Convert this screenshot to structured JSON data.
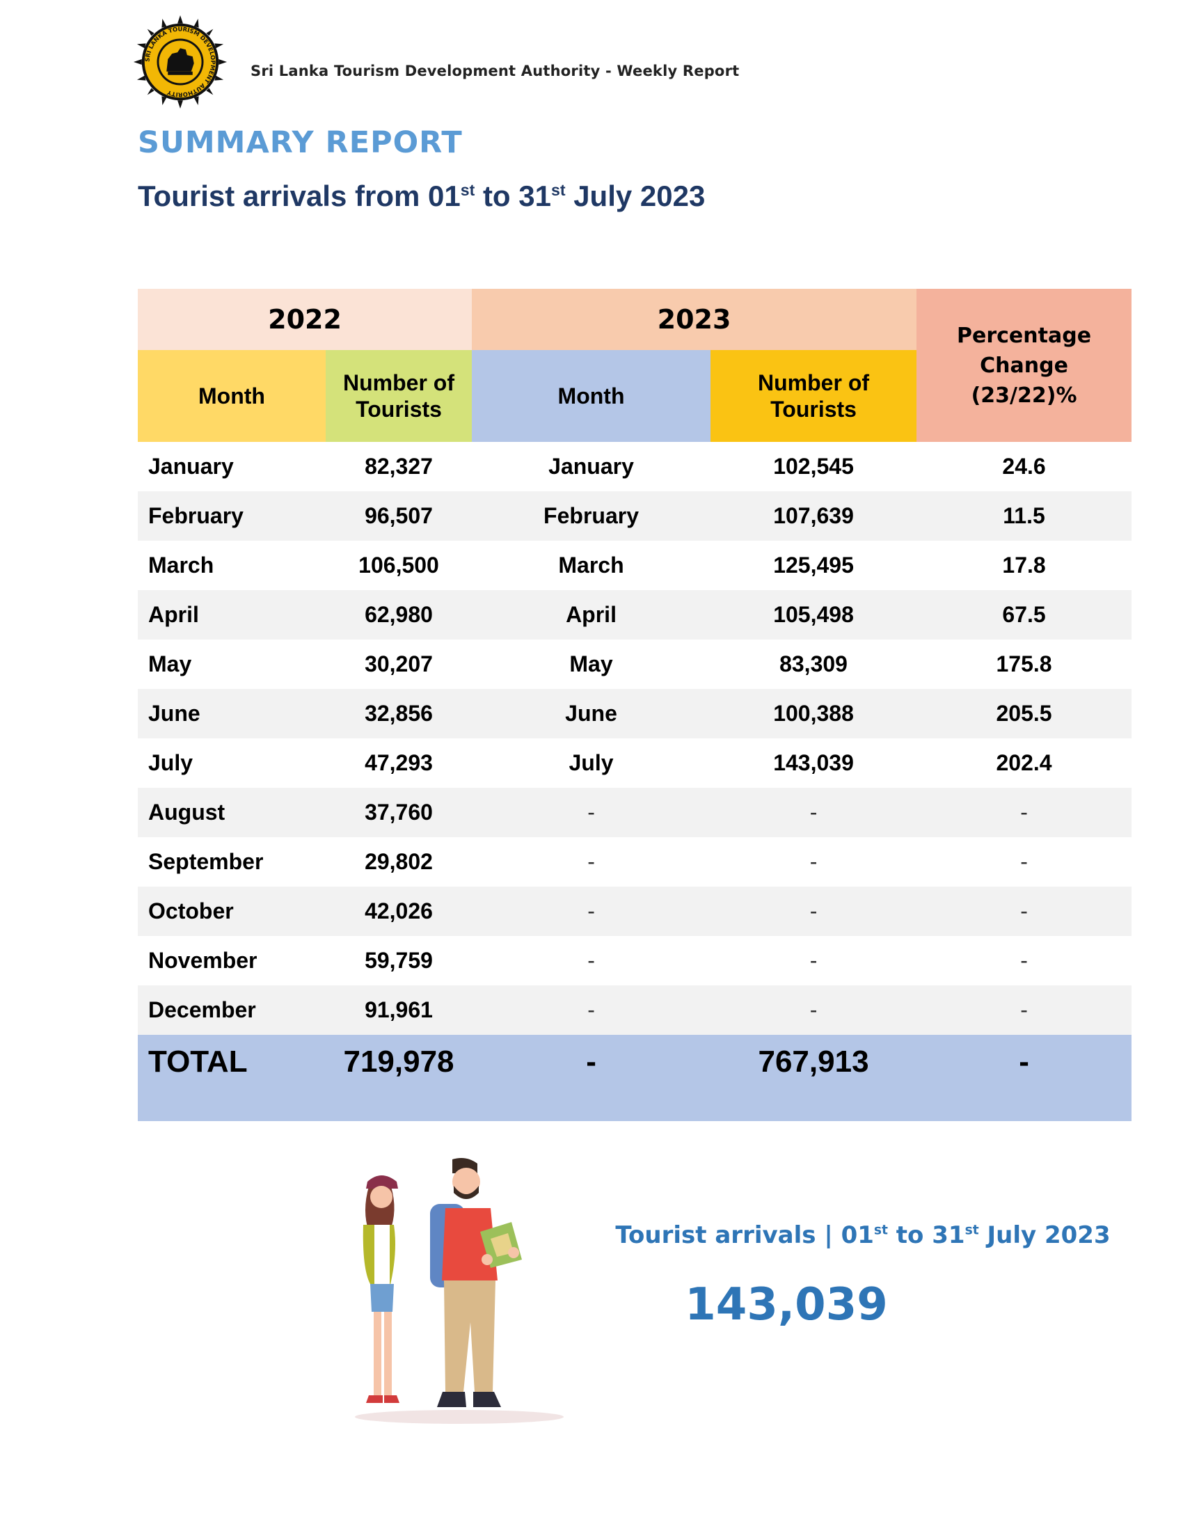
{
  "header": {
    "org_text": "Sri Lanka Tourism Development Authority - Weekly Report",
    "seal_text": "SRI LANKA TOURISM DEVELOPMENT AUTHORITY"
  },
  "title": "SUMMARY REPORT",
  "subtitle": {
    "prefix": "Tourist arrivals from 01",
    "sup1": "st",
    "mid": " to 31",
    "sup2": "st",
    "suffix": " July 2023"
  },
  "table": {
    "year_2022": "2022",
    "year_2023": "2023",
    "pct_header": [
      "Percentage",
      "Change",
      "(23/22)%"
    ],
    "col_month": "Month",
    "col_tourists": [
      "Number of",
      "Tourists"
    ],
    "rows": [
      {
        "m22": "January",
        "n22": "82,327",
        "m23": "January",
        "n23": "102,545",
        "pct": "24.6"
      },
      {
        "m22": "February",
        "n22": "96,507",
        "m23": "February",
        "n23": "107,639",
        "pct": "11.5"
      },
      {
        "m22": "March",
        "n22": "106,500",
        "m23": "March",
        "n23": "125,495",
        "pct": "17.8"
      },
      {
        "m22": "April",
        "n22": "62,980",
        "m23": "April",
        "n23": "105,498",
        "pct": "67.5"
      },
      {
        "m22": "May",
        "n22": "30,207",
        "m23": "May",
        "n23": "83,309",
        "pct": "175.8"
      },
      {
        "m22": "June",
        "n22": "32,856",
        "m23": "June",
        "n23": "100,388",
        "pct": "205.5"
      },
      {
        "m22": "July",
        "n22": "47,293",
        "m23": "July",
        "n23": "143,039",
        "pct": "202.4"
      },
      {
        "m22": "August",
        "n22": "37,760",
        "m23": "-",
        "n23": "-",
        "pct": "-"
      },
      {
        "m22": "September",
        "n22": "29,802",
        "m23": "-",
        "n23": "-",
        "pct": "-"
      },
      {
        "m22": "October",
        "n22": "42,026",
        "m23": "-",
        "n23": "-",
        "pct": "-"
      },
      {
        "m22": "November",
        "n22": "59,759",
        "m23": "-",
        "n23": "-",
        "pct": "-"
      },
      {
        "m22": "December",
        "n22": "91,961",
        "m23": "-",
        "n23": "-",
        "pct": "-"
      }
    ],
    "total": {
      "label": "TOTAL",
      "n22": "719,978",
      "m23": "-",
      "n23": "767,913",
      "pct": "-"
    }
  },
  "caption": {
    "prefix": "Tourist arrivals | 01",
    "sup1": "st",
    "mid": " to 31",
    "sup2": "st",
    "suffix": "  July 2023"
  },
  "highlight_number": "143,039",
  "colors": {
    "title_blue": "#5b9bd5",
    "subtitle_navy": "#1f3864",
    "accent_blue": "#2e75b6",
    "year_2022_bg": "#fbe3d6",
    "year_2023_bg": "#f8cbad",
    "pct_bg": "#f4b29c",
    "month_2022_bg": "#ffd966",
    "tourists_2022_bg": "#d4e27a",
    "month_2023_bg": "#b4c6e7",
    "tourists_2023_bg": "#fac313",
    "total_bg": "#b4c6e7"
  }
}
